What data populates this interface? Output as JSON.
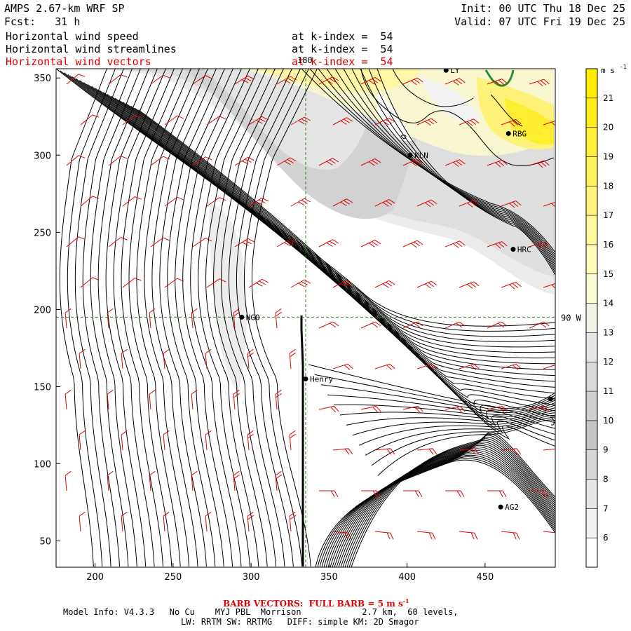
{
  "header": {
    "model_title": "AMPS 2.67-km WRF SP",
    "init": "Init: 00 UTC Thu 18 Dec 25",
    "forecast": "Fcst:   31 h",
    "valid": "Valid: 07 UTC Fri 19 Dec 25"
  },
  "fields": [
    {
      "name": "Horizontal wind speed",
      "level": "at k-index =  54",
      "color": "#000000"
    },
    {
      "name": "Horizontal wind streamlines",
      "level": "at k-index =  54",
      "color": "#000000"
    },
    {
      "name": "Horizontal wind vectors",
      "level": "at k-index =  54",
      "color": "#e00000"
    }
  ],
  "map": {
    "x_ticks": [
      "200",
      "250",
      "300",
      "350",
      "400",
      "450"
    ],
    "y_ticks": [
      "350",
      "300",
      "250",
      "200",
      "150",
      "100",
      "50"
    ],
    "x_range": [
      175,
      495
    ],
    "y_range": [
      33,
      356
    ],
    "meridian_label": "180",
    "parallel_label": "90 W",
    "meridian_x": 335,
    "parallel_y": 195,
    "stations": [
      {
        "id": "LY",
        "label": "LY",
        "x": 425,
        "y": 355
      },
      {
        "id": "RBG",
        "label": "RBG",
        "x": 465,
        "y": 314
      },
      {
        "id": "KLN",
        "label": "KLN",
        "x": 402,
        "y": 300
      },
      {
        "id": "HRC",
        "label": "HRC",
        "x": 468,
        "y": 239
      },
      {
        "id": "NGO",
        "label": "NGO",
        "x": 294,
        "y": 195
      },
      {
        "id": "Henry",
        "label": "Henry",
        "x": 335,
        "y": 155
      },
      {
        "id": "AG2",
        "label": "AG2",
        "x": 460,
        "y": 72
      },
      {
        "id": "edge",
        "label": "",
        "x": 492,
        "y": 142
      }
    ],
    "colors": {
      "barb": "#e00000",
      "streamline": "#000000",
      "grid": "#2e7d1f",
      "coast": "#2e8b2e"
    }
  },
  "colorbar": {
    "unit": "m s",
    "unit_exp": "-1",
    "levels": [
      "21",
      "20",
      "19",
      "18",
      "17",
      "16",
      "15",
      "14",
      "13",
      "12",
      "11",
      "10",
      "9",
      "8",
      "7",
      "6"
    ],
    "colors": [
      "#ffee00",
      "#ffee1a",
      "#fff03c",
      "#fff25c",
      "#fff57c",
      "#fff89c",
      "#fffbbb",
      "#fbfcd6",
      "#f1f2e6",
      "#e6e6e6",
      "#dadada",
      "#cecece",
      "#c4c4c4",
      "#d6d6d6",
      "#e6e6e6",
      "#f1f1f1",
      "#ffffff"
    ]
  },
  "footer": {
    "barb_note": "BARB VECTORS:  FULL BARB = 5 m s",
    "barb_exp": "-1",
    "model_info": "Model Info: V4.3.3   No Cu    MYJ PBL  Morrison            2.7 km,  60 levels,",
    "physics": "LW: RRTM SW: RRTMG   DIFF: simple KM: 2D Smagor"
  }
}
